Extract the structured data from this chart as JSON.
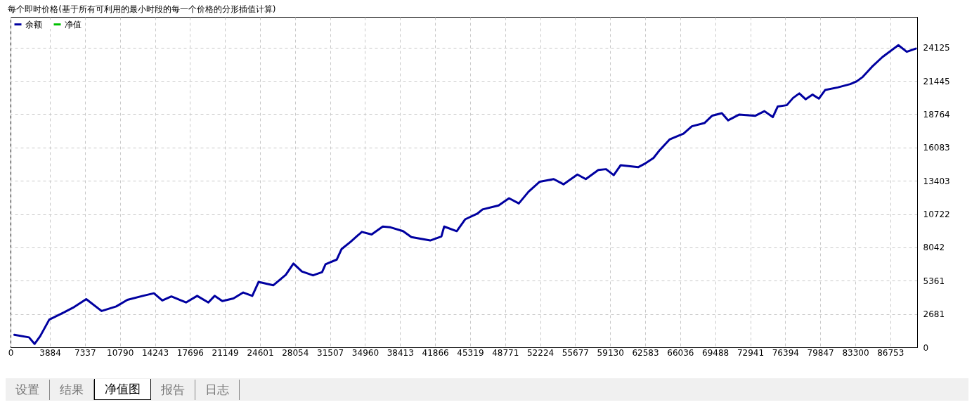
{
  "chart_data": {
    "type": "line",
    "title": "每个即时价格(基于所有可利用的最小时段的每一个价格的分形插值计算)",
    "x": [
      378,
      1823,
      2374,
      2924,
      3818,
      5263,
      6158,
      7465,
      8978,
      10423,
      11524,
      13038,
      14138,
      14964,
      15858,
      17303,
      18404,
      19505,
      20124,
      20881,
      21981,
      22945,
      23839,
      24458,
      25903,
      27142,
      27898,
      28724,
      29825,
      30719,
      31063,
      32164,
      32646,
      33540,
      34641,
      35604,
      36705,
      37462,
      38700,
      39526,
      41384,
      42484,
      42760,
      43998,
      44824,
      46062,
      46544,
      48126,
      49158,
      50121,
      51084,
      52185,
      53561,
      54524,
      55900,
      56726,
      57964,
      58721,
      59478,
      60166,
      61886,
      62505,
      63400,
      64019,
      64982,
      65601,
      66358,
      67184,
      68422,
      69179,
      70142,
      70762,
      71863,
      73445,
      74340,
      75165,
      75647,
      76541,
      77160,
      77780,
      78399,
      79087,
      79706,
      80325,
      81564,
      82802,
      83421,
      84040,
      84935,
      85967,
      87549,
      88375,
      89269
    ],
    "series": [
      {
        "name": "余额",
        "color": "#0000a0",
        "values": [
          1010,
          800,
          270,
          900,
          2230,
          2810,
          3190,
          3880,
          2920,
          3290,
          3820,
          4140,
          4350,
          3770,
          4090,
          3610,
          4140,
          3610,
          4140,
          3720,
          3930,
          4410,
          4140,
          5260,
          4990,
          5840,
          6740,
          6110,
          5790,
          6050,
          6690,
          7060,
          7910,
          8500,
          9290,
          9080,
          9720,
          9660,
          9350,
          8870,
          8600,
          8920,
          9720,
          9350,
          10300,
          10780,
          11100,
          11420,
          12000,
          11580,
          12530,
          13330,
          13540,
          13120,
          13910,
          13540,
          14280,
          14340,
          13860,
          14660,
          14500,
          14760,
          15240,
          15880,
          16730,
          16940,
          17200,
          17790,
          18050,
          18640,
          18850,
          18270,
          18740,
          18640,
          19010,
          18530,
          19380,
          19490,
          20070,
          20440,
          19970,
          20340,
          20020,
          20710,
          20920,
          21190,
          21400,
          21770,
          22570,
          23360,
          24320,
          23790,
          24050
        ]
      },
      {
        "name": "净值",
        "color": "#00c000",
        "values": [
          null,
          null,
          null,
          null,
          null,
          null,
          null,
          null,
          null,
          null,
          null,
          null,
          null,
          null,
          null,
          null,
          null,
          null,
          null,
          null,
          null,
          null,
          null,
          null,
          null,
          null,
          null,
          null,
          null,
          null,
          null,
          null,
          null,
          null,
          null,
          null,
          null,
          null,
          null,
          null,
          null,
          null,
          null,
          null,
          null,
          null,
          null,
          null,
          null,
          null,
          null,
          null,
          null,
          null,
          null,
          null,
          null,
          null,
          null,
          null,
          null,
          null,
          null,
          null,
          null,
          null,
          null,
          null,
          null,
          null,
          null,
          null,
          null,
          null,
          null,
          null,
          null,
          null,
          null,
          null,
          null,
          null,
          null,
          null,
          null,
          null,
          null,
          null,
          null,
          null,
          null,
          null,
          null
        ]
      }
    ],
    "xlim": [
      0,
      89400
    ],
    "xticks": [
      0,
      3884,
      7337,
      10790,
      14243,
      17696,
      21149,
      24601,
      28054,
      31507,
      34960,
      38413,
      41866,
      45319,
      48771,
      52224,
      55677,
      59130,
      62583,
      66036,
      69488,
      72941,
      76394,
      79847,
      83300,
      86753
    ],
    "ylim": [
      0,
      26600
    ],
    "yticks": [
      0,
      2681,
      5361,
      8042,
      10722,
      13403,
      16083,
      18764,
      21445,
      24125
    ],
    "grid": true,
    "legend": "top left",
    "marker": "none",
    "line_style": "solid",
    "annotations": [
      "设置",
      "结果",
      "净值图",
      "报告",
      "日志"
    ]
  }
}
